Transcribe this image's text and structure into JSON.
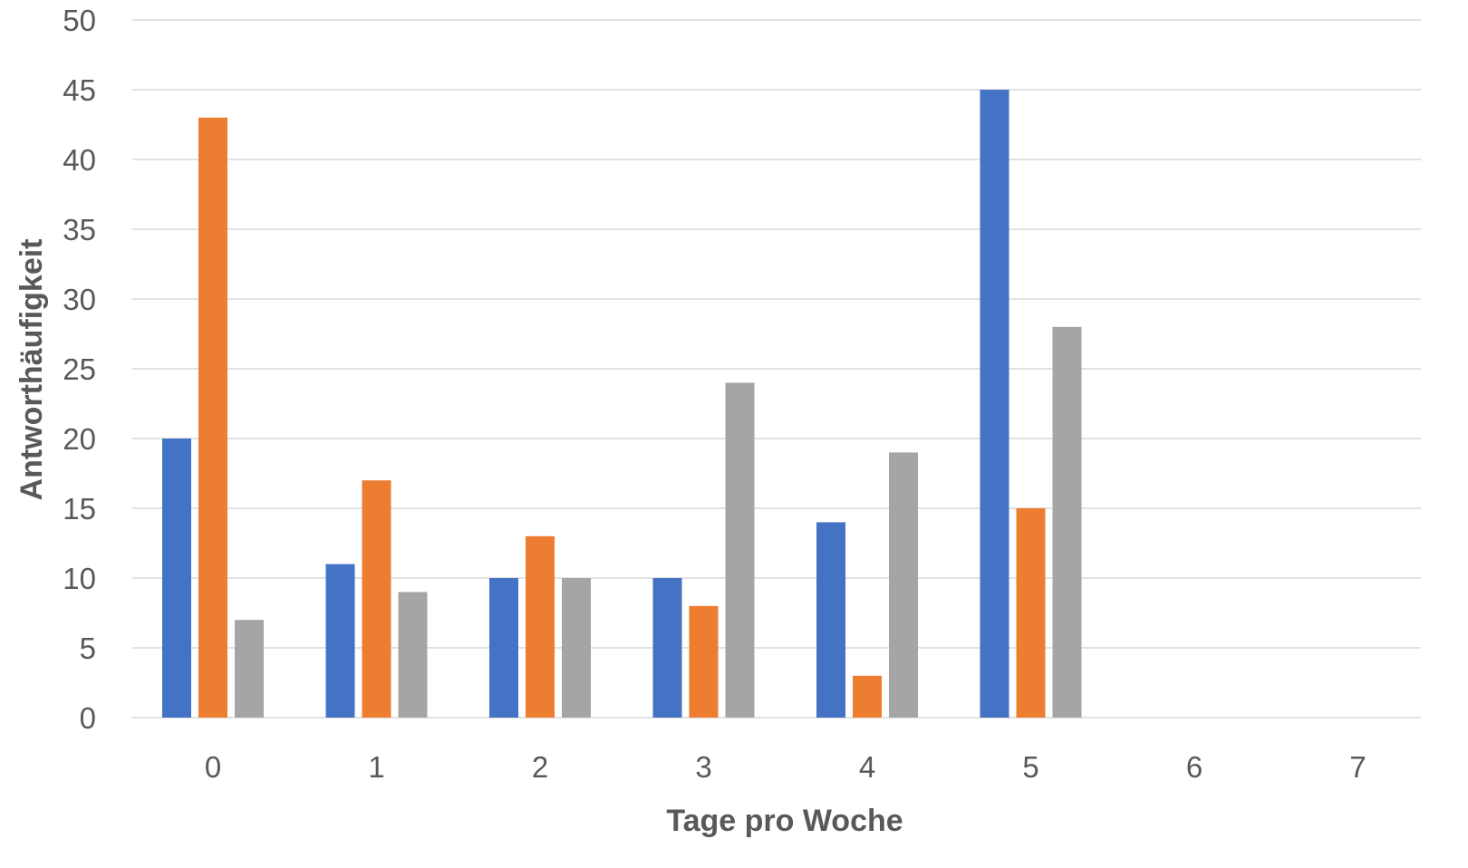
{
  "chart_data": {
    "type": "bar",
    "title": "",
    "xlabel": "Tage pro Woche",
    "ylabel": "Antworthäufigkeit",
    "categories": [
      "0",
      "1",
      "2",
      "3",
      "4",
      "5",
      "6",
      "7"
    ],
    "ylim": [
      0,
      50
    ],
    "yticks": [
      0,
      5,
      10,
      15,
      20,
      25,
      30,
      35,
      40,
      45,
      50
    ],
    "grid": true,
    "legend": "none",
    "series": [
      {
        "color": "#4472c4",
        "values": [
          20,
          11,
          10,
          10,
          14,
          45,
          0,
          0
        ]
      },
      {
        "color": "#ed7d31",
        "values": [
          43,
          17,
          13,
          8,
          3,
          15,
          0,
          0
        ]
      },
      {
        "color": "#a5a5a5",
        "values": [
          7,
          9,
          10,
          24,
          19,
          28,
          0,
          0
        ]
      }
    ]
  }
}
